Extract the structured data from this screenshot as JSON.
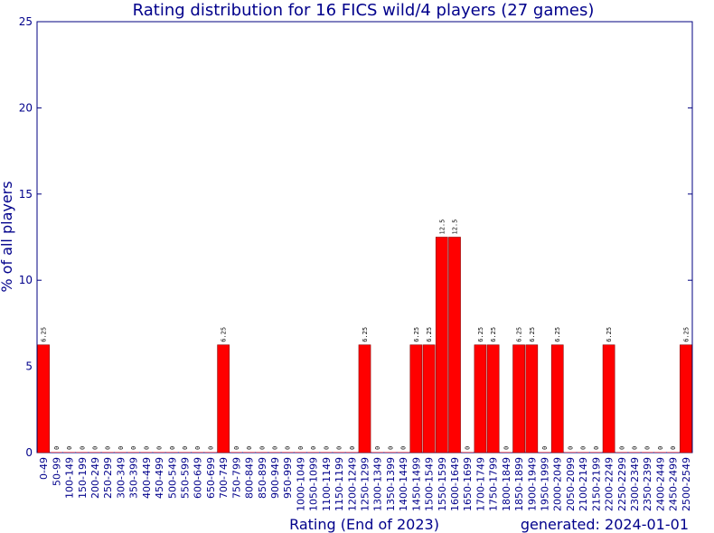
{
  "chart_data": {
    "type": "bar",
    "title": "Rating distribution for 16 FICS wild/4 players (27 games)",
    "xlabel": "Rating (End of 2023)",
    "ylabel": "% of all players",
    "footer": "generated: 2024-01-01",
    "ylim": [
      0,
      25
    ],
    "yticks": [
      0,
      5,
      10,
      15,
      20,
      25
    ],
    "grid": false,
    "colors": {
      "bar": "#ff0000",
      "bar_edge": "#8b0000",
      "text": "#00008b",
      "axis": "#000080"
    },
    "categories": [
      "0-49",
      "50-99",
      "100-149",
      "150-199",
      "200-249",
      "250-299",
      "300-349",
      "350-399",
      "400-449",
      "450-499",
      "500-549",
      "550-599",
      "600-649",
      "650-699",
      "700-749",
      "750-799",
      "800-849",
      "850-899",
      "900-949",
      "950-999",
      "1000-1049",
      "1050-1099",
      "1100-1149",
      "1150-1199",
      "1200-1249",
      "1250-1299",
      "1300-1349",
      "1350-1399",
      "1400-1449",
      "1450-1499",
      "1500-1549",
      "1550-1599",
      "1600-1649",
      "1650-1699",
      "1700-1749",
      "1750-1799",
      "1800-1849",
      "1850-1899",
      "1900-1949",
      "1950-1999",
      "2000-2049",
      "2050-2099",
      "2100-2149",
      "2150-2199",
      "2200-2249",
      "2250-2299",
      "2300-2349",
      "2350-2399",
      "2400-2449",
      "2450-2499",
      "2500-2549"
    ],
    "values": [
      6.25,
      0,
      0,
      0,
      0,
      0,
      0,
      0,
      0,
      0,
      0,
      0,
      0,
      0,
      6.25,
      0,
      0,
      0,
      0,
      0,
      0,
      0,
      0,
      0,
      0,
      6.25,
      0,
      0,
      0,
      6.25,
      6.25,
      12.5,
      12.5,
      0,
      6.25,
      6.25,
      0,
      6.25,
      6.25,
      0,
      6.25,
      0,
      0,
      0,
      6.25,
      0,
      0,
      0,
      0,
      0,
      6.25
    ],
    "data_labels": [
      "6.25",
      "0",
      "0",
      "0",
      "0",
      "0",
      "0",
      "0",
      "0",
      "0",
      "0",
      "0",
      "0",
      "0",
      "6.25",
      "0",
      "0",
      "0",
      "0",
      "0",
      "0",
      "0",
      "0",
      "0",
      "0",
      "6.25",
      "0",
      "0",
      "0",
      "6.25",
      "6.25",
      "12.5",
      "12.5",
      "0",
      "6.25",
      "6.25",
      "0",
      "6.25",
      "6.25",
      "0",
      "6.25",
      "0",
      "0",
      "0",
      "6.25",
      "0",
      "0",
      "0",
      "0",
      "0",
      "6.25"
    ]
  }
}
